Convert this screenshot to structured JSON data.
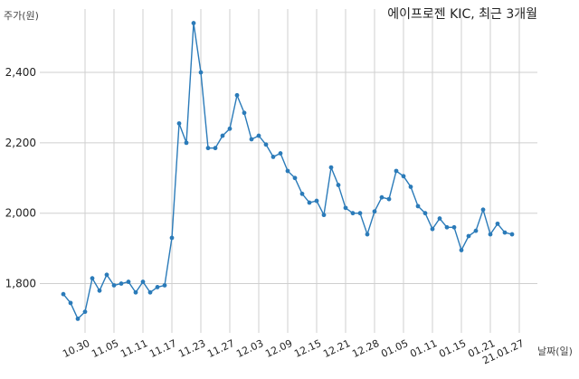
{
  "chart_data": {
    "type": "line",
    "title": "에이프로젠 KIC, 최근 3개월",
    "ylabel": "주가(원)",
    "xlabel": "날짜(일)",
    "ylim": [
      1660,
      2580
    ],
    "yticks": [
      1800,
      2000,
      2200,
      2400
    ],
    "ytick_labels": [
      "1,800",
      "2,000",
      "2,200",
      "2,400"
    ],
    "grid": true,
    "color": "#2b7bb9",
    "x_tick_labels": [
      "10.30",
      "11.05",
      "11.11",
      "11.17",
      "11.23",
      "11.27",
      "12.03",
      "12.09",
      "12.15",
      "12.21",
      "12.28",
      "01.05",
      "01.11",
      "01.15",
      "01.21",
      "21.01.27"
    ],
    "x_tick_index": [
      3,
      7,
      11,
      15,
      19,
      23,
      27,
      31,
      35,
      39,
      43,
      47,
      51,
      55,
      59,
      63
    ],
    "values": [
      1770,
      1745,
      1700,
      1720,
      1815,
      1780,
      1825,
      1795,
      1800,
      1805,
      1775,
      1805,
      1775,
      1790,
      1795,
      1930,
      2255,
      2200,
      2540,
      2400,
      2185,
      2185,
      2220,
      2240,
      2335,
      2285,
      2210,
      2220,
      2195,
      2160,
      2170,
      2120,
      2100,
      2055,
      2030,
      2035,
      1995,
      2130,
      2080,
      2015,
      2000,
      2000,
      1940,
      2005,
      2045,
      2040,
      2120,
      2105,
      2075,
      2020,
      2000,
      1955,
      1985,
      1960,
      1960,
      1895,
      1935,
      1950,
      2010,
      1940,
      1970,
      1945,
      1940
    ]
  }
}
